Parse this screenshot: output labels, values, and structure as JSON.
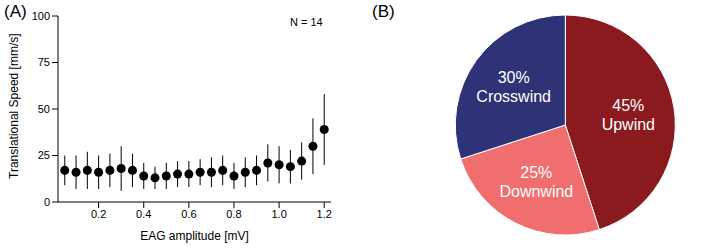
{
  "chart_data": [
    {
      "type": "scatter",
      "title": "(A)",
      "annotation": "N = 14",
      "x_label": "EAG amplitude [mV]",
      "y_label": "Translational Speed [mm/s]",
      "x": [
        0.05,
        0.1,
        0.15,
        0.2,
        0.25,
        0.3,
        0.35,
        0.4,
        0.45,
        0.5,
        0.55,
        0.6,
        0.65,
        0.7,
        0.75,
        0.8,
        0.85,
        0.9,
        0.95,
        1.0,
        1.05,
        1.1,
        1.15,
        1.2
      ],
      "values": [
        17,
        16,
        17,
        16,
        17,
        18,
        17,
        14,
        13,
        14,
        15,
        15,
        16,
        16,
        17,
        14,
        16,
        17,
        21,
        20,
        19,
        22,
        30,
        39
      ],
      "errors": [
        8,
        9,
        10,
        9,
        9,
        12,
        9,
        7,
        6,
        7,
        7,
        7,
        7,
        8,
        8,
        7,
        8,
        8,
        10,
        10,
        9,
        10,
        15,
        19
      ],
      "xlim": [
        0.02,
        1.23
      ],
      "xticks": [
        0.2,
        0.4,
        0.6,
        0.8,
        {
          "value": 1,
          "label": "1.0"
        },
        1.2
      ],
      "ylim": [
        0,
        100
      ],
      "yticks": [
        0,
        25,
        50,
        75,
        100
      ],
      "color": "#000000",
      "marker": "circle"
    },
    {
      "type": "pie",
      "title": "(B)",
      "categories": [
        "Upwind",
        "Downwind",
        "Crosswind"
      ],
      "values": [
        45,
        25,
        30
      ],
      "value_labels": [
        "45%",
        "25%",
        "30%"
      ],
      "colors": [
        "#8b1a1f",
        "#f06e6e",
        "#2e3276"
      ],
      "data_labels": true
    }
  ]
}
